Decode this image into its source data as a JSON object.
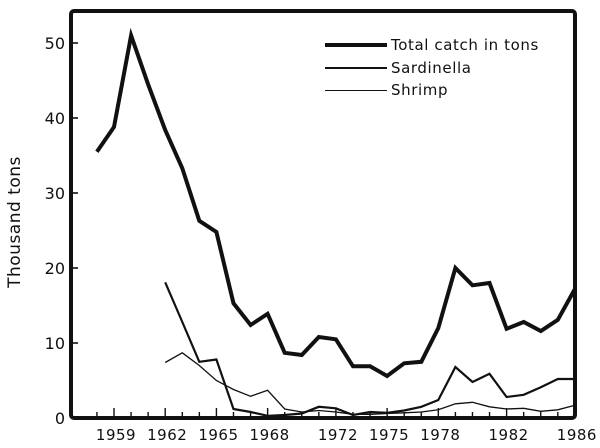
{
  "chart_data": {
    "type": "line",
    "title": "",
    "xlabel": "",
    "ylabel": "Thousand tons",
    "xlim": [
      1956.6,
      1986
    ],
    "ylim": [
      0,
      50
    ],
    "x_tick_labels": [
      "1959",
      "1962",
      "1965",
      "1968",
      "1972",
      "1975",
      "1978",
      "1982",
      "1986"
    ],
    "x_minor_ticks_every": 1,
    "y_tick_labels": [
      "0",
      "10",
      "20",
      "30",
      "40",
      "50"
    ],
    "grid": false,
    "legend_position": "upper right",
    "series": [
      {
        "name": "Total catch in tons",
        "stroke_width": 4,
        "x": [
          1958,
          1959,
          1960,
          1961,
          1962,
          1963,
          1964,
          1965,
          1966,
          1967,
          1968,
          1969,
          1970,
          1971,
          1972,
          1973,
          1974,
          1975,
          1976,
          1977,
          1978,
          1979,
          1980,
          1981,
          1982,
          1983,
          1984,
          1985,
          1986
        ],
        "values": [
          35.5,
          38.8,
          51.0,
          44.5,
          38.4,
          33.3,
          26.3,
          24.8,
          15.3,
          12.4,
          13.9,
          8.7,
          8.4,
          10.8,
          10.5,
          6.9,
          6.9,
          5.6,
          7.3,
          7.5,
          12.0,
          20.0,
          17.7,
          18.0,
          11.9,
          12.8,
          11.6,
          13.1,
          17.2
        ]
      },
      {
        "name": "Sardinella",
        "stroke_width": 2.2,
        "x": [
          1962,
          1963,
          1964,
          1965,
          1966,
          1967,
          1968,
          1969,
          1970,
          1971,
          1972,
          1973,
          1974,
          1975,
          1976,
          1977,
          1978,
          1979,
          1980,
          1981,
          1982,
          1983,
          1984,
          1985,
          1986
        ],
        "values": [
          18.1,
          12.8,
          7.5,
          7.8,
          1.2,
          0.8,
          0.3,
          0.4,
          0.6,
          1.5,
          1.3,
          0.4,
          0.8,
          0.7,
          1.0,
          1.5,
          2.4,
          6.8,
          4.8,
          5.9,
          2.8,
          3.1,
          4.1,
          5.2,
          5.2
        ]
      },
      {
        "name": "Shrimp",
        "stroke_width": 1.3,
        "x": [
          1962,
          1963,
          1964,
          1965,
          1966,
          1967,
          1968,
          1969,
          1970,
          1971,
          1972,
          1973,
          1974,
          1975,
          1976,
          1977,
          1978,
          1979,
          1980,
          1981,
          1982,
          1983,
          1984,
          1985,
          1986
        ],
        "values": [
          7.4,
          8.7,
          7.0,
          5.0,
          3.8,
          2.9,
          3.7,
          1.2,
          0.8,
          1.0,
          0.8,
          0.5,
          0.5,
          0.6,
          0.7,
          0.8,
          1.1,
          1.9,
          2.1,
          1.5,
          1.2,
          1.3,
          0.9,
          1.1,
          1.7
        ]
      }
    ]
  },
  "legend": {
    "items": [
      {
        "label": "Total catch in tons"
      },
      {
        "label": "Sardinella"
      },
      {
        "label": "Shrimp"
      }
    ]
  },
  "axes": {
    "ylabel": "Thousand tons"
  },
  "colors": {
    "ink": "#111111",
    "background": "#ffffff"
  }
}
